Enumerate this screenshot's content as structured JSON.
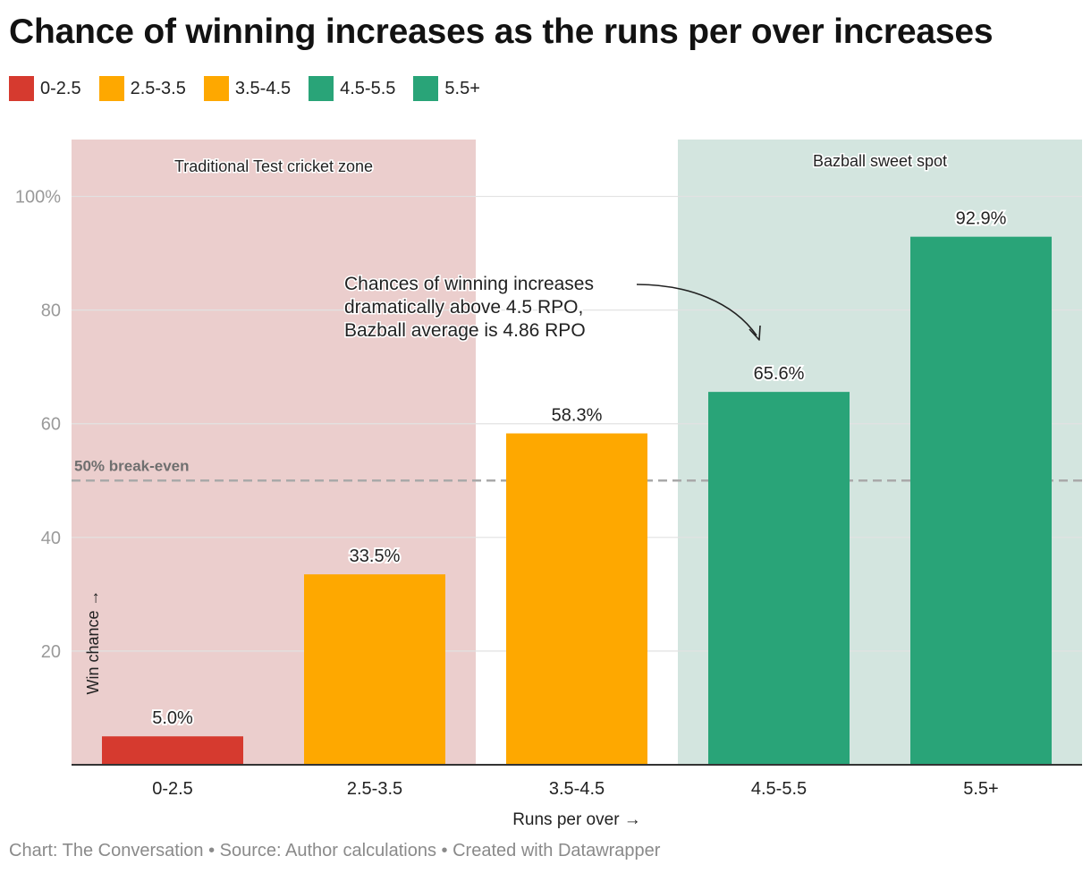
{
  "chart_data": {
    "type": "bar",
    "title": "Chance of winning increases as the runs per over increases",
    "categories": [
      "0-2.5",
      "2.5-3.5",
      "3.5-4.5",
      "4.5-5.5",
      "5.5+"
    ],
    "values": [
      5.0,
      33.5,
      58.3,
      65.6,
      92.9
    ],
    "value_labels": [
      "5.0%",
      "33.5%",
      "58.3%",
      "65.6%",
      "92.9%"
    ],
    "colors": [
      "#d63a2f",
      "#fea800",
      "#fea800",
      "#29a478",
      "#29a478"
    ],
    "xlabel": "Runs per over →",
    "ylabel": "Win chance →",
    "ylim": [
      0,
      110
    ],
    "yticks": [
      20,
      40,
      60,
      80,
      100
    ],
    "ytick_labels": [
      "20",
      "40",
      "60",
      "80",
      "100%"
    ],
    "grid": true,
    "legend": {
      "position": "top-left",
      "entries": [
        "0-2.5",
        "2.5-3.5",
        "3.5-4.5",
        "4.5-5.5",
        "5.5+"
      ]
    },
    "reference_line": {
      "value": 50,
      "label": "50% break-even"
    },
    "zones": [
      {
        "label": "Traditional Test cricket zone",
        "from_category": 0,
        "to_category": 1,
        "color": "#ebcecd"
      },
      {
        "label": "Bazball sweet spot",
        "from_category": 3,
        "to_category": 4,
        "color": "#d3e5df"
      }
    ],
    "annotation": {
      "lines": [
        "Chances of winning increases",
        "dramatically above 4.5 RPO,",
        "Bazball average is 4.86 RPO"
      ],
      "points_to_category": 3
    }
  },
  "footer": "Chart: The Conversation • Source: Author calculations • Created with Datawrapper"
}
